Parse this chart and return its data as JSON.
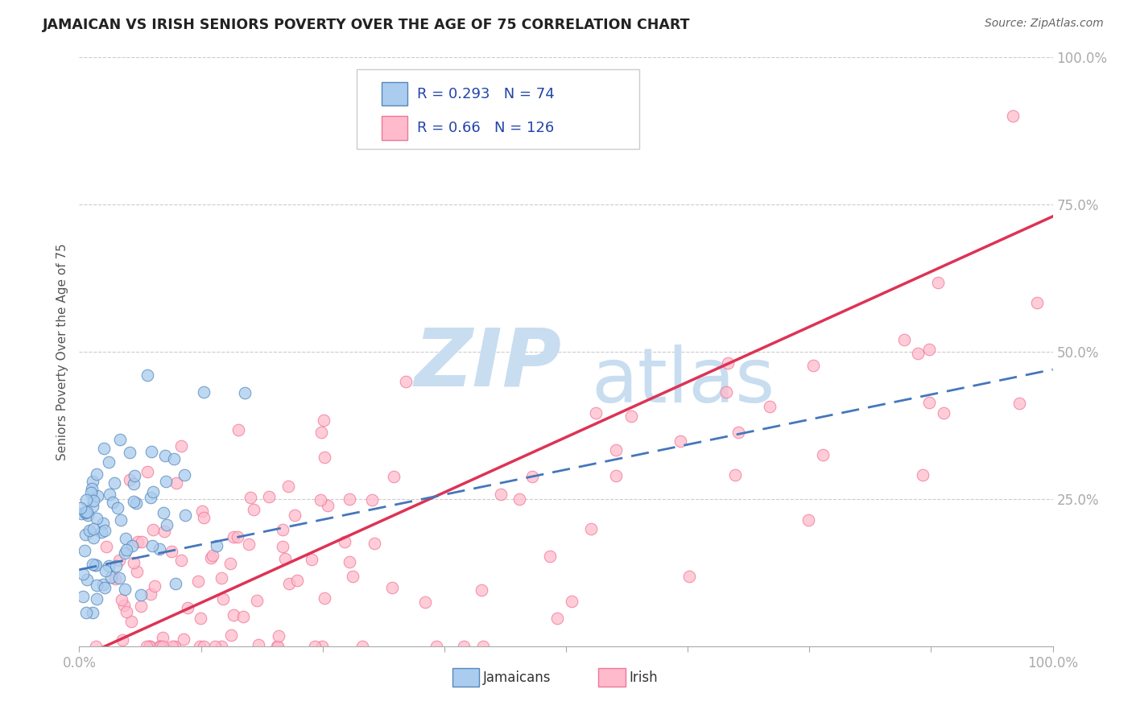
{
  "title": "JAMAICAN VS IRISH SENIORS POVERTY OVER THE AGE OF 75 CORRELATION CHART",
  "source": "Source: ZipAtlas.com",
  "ylabel": "Seniors Poverty Over the Age of 75",
  "xlim": [
    0,
    1
  ],
  "ylim": [
    0,
    1
  ],
  "xticks": [
    0.0,
    0.125,
    0.25,
    0.375,
    0.5,
    0.625,
    0.75,
    0.875,
    1.0
  ],
  "yticks": [
    0.0,
    0.25,
    0.5,
    0.75,
    1.0
  ],
  "jamaican_color": "#aaccee",
  "irish_color": "#ffbbcc",
  "jamaican_edge": "#5588bb",
  "irish_edge": "#ee7799",
  "jamaican_R": 0.293,
  "jamaican_N": 74,
  "irish_R": 0.66,
  "irish_N": 126,
  "reg_jamaican_color": "#4477bb",
  "reg_irish_color": "#dd3355",
  "watermark_zip": "ZIP",
  "watermark_atlas": "atlas",
  "watermark_color": "#c8ddf0",
  "legend_color": "#2244aa",
  "background_color": "#ffffff",
  "grid_color": "#cccccc",
  "title_color": "#222222",
  "axis_tick_color": "#3355bb",
  "seed": 99
}
